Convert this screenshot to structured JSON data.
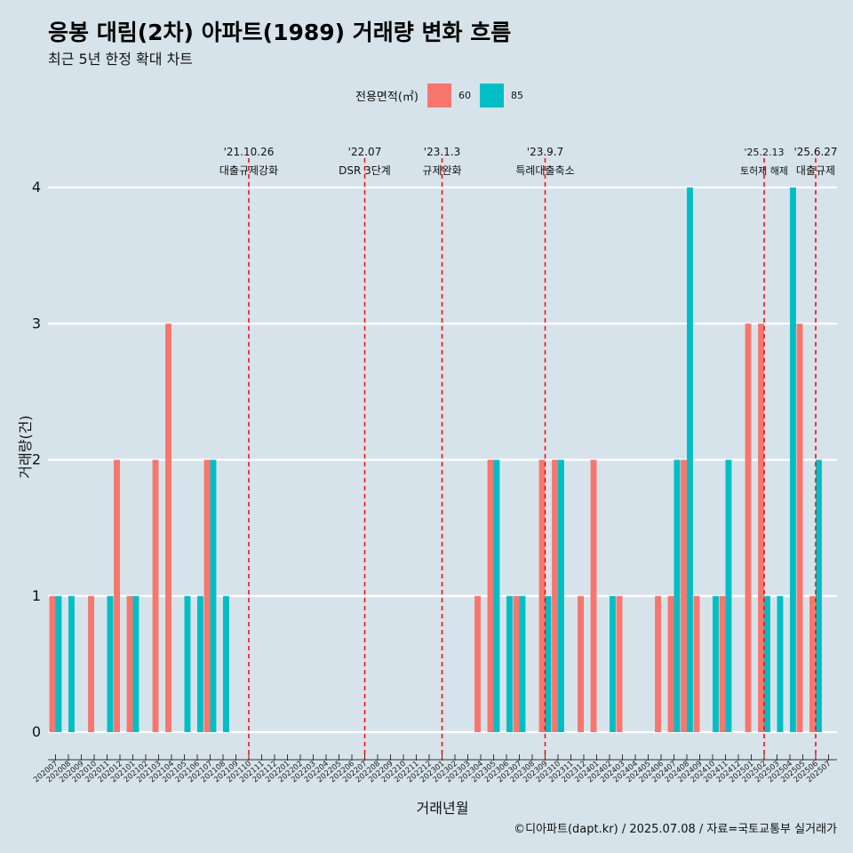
{
  "title": "응봉 대림(2차) 아파트(1989) 거래량 변화 흐름",
  "subtitle": "최근 5년 한정 확대 차트",
  "legend": {
    "title": "전용면적(㎡)",
    "items": [
      {
        "label": "60",
        "color": "#f8766d"
      },
      {
        "label": "85",
        "color": "#00bfc4"
      }
    ]
  },
  "caption": "©디아파트(dapt.kr) / 2025.07.08 / 자료=국토교통부 실거래가",
  "chart_data": {
    "type": "bar",
    "xlabel": "거래년월",
    "ylabel": "거래량(건)",
    "ylim": [
      0,
      4
    ],
    "yticks": [
      0,
      1,
      2,
      3,
      4
    ],
    "grid": "horizontal",
    "legend_position": "top",
    "categories": [
      "202007",
      "202008",
      "202009",
      "202010",
      "202011",
      "202012",
      "202101",
      "202102",
      "202103",
      "202104",
      "202105",
      "202106",
      "202107",
      "202108",
      "202109",
      "202110",
      "202111",
      "202112",
      "202201",
      "202202",
      "202203",
      "202204",
      "202205",
      "202206",
      "202207",
      "202208",
      "202209",
      "202210",
      "202211",
      "202212",
      "202301",
      "202302",
      "202303",
      "202304",
      "202305",
      "202306",
      "202307",
      "202308",
      "202309",
      "202310",
      "202311",
      "202312",
      "202401",
      "202402",
      "202403",
      "202404",
      "202405",
      "202406",
      "202407",
      "202408",
      "202409",
      "202410",
      "202411",
      "202412",
      "202501",
      "202502",
      "202503",
      "202504",
      "202505",
      "202506",
      "202507"
    ],
    "series": [
      {
        "name": "60",
        "color": "#f8766d",
        "values": [
          1,
          0,
          0,
          1,
          0,
          2,
          1,
          0,
          2,
          3,
          0,
          0,
          2,
          0,
          0,
          0,
          0,
          0,
          0,
          0,
          0,
          0,
          0,
          0,
          0,
          0,
          0,
          0,
          0,
          0,
          0,
          0,
          0,
          1,
          2,
          0,
          1,
          0,
          2,
          2,
          0,
          1,
          2,
          0,
          1,
          0,
          0,
          1,
          1,
          2,
          1,
          0,
          1,
          0,
          3,
          3,
          0,
          0,
          3,
          1,
          0
        ]
      },
      {
        "name": "85",
        "color": "#00bfc4",
        "values": [
          1,
          1,
          0,
          0,
          1,
          0,
          1,
          0,
          0,
          0,
          1,
          1,
          2,
          1,
          0,
          0,
          0,
          0,
          0,
          0,
          0,
          0,
          0,
          0,
          0,
          0,
          0,
          0,
          0,
          0,
          0,
          0,
          0,
          0,
          2,
          1,
          1,
          0,
          1,
          2,
          0,
          0,
          0,
          1,
          0,
          0,
          0,
          0,
          2,
          4,
          0,
          1,
          2,
          0,
          0,
          1,
          1,
          4,
          0,
          2,
          0
        ]
      }
    ],
    "annotations": [
      {
        "month": "202110",
        "date": "'21.10.26",
        "label": "대출규제강화"
      },
      {
        "month": "202207",
        "date": "'22.07",
        "label": "DSR 3단계"
      },
      {
        "month": "202301",
        "date": "'23.1.3",
        "label": "규제완화"
      },
      {
        "month": "202309",
        "date": "'23.9.7",
        "label": "특례대출축소"
      },
      {
        "month": "202502",
        "date": "'25.2.13",
        "label": "토허제 해제"
      },
      {
        "month": "202506",
        "date": "'25.6.27",
        "label": "대출규제"
      }
    ],
    "annotation_color": "#ff0000"
  }
}
